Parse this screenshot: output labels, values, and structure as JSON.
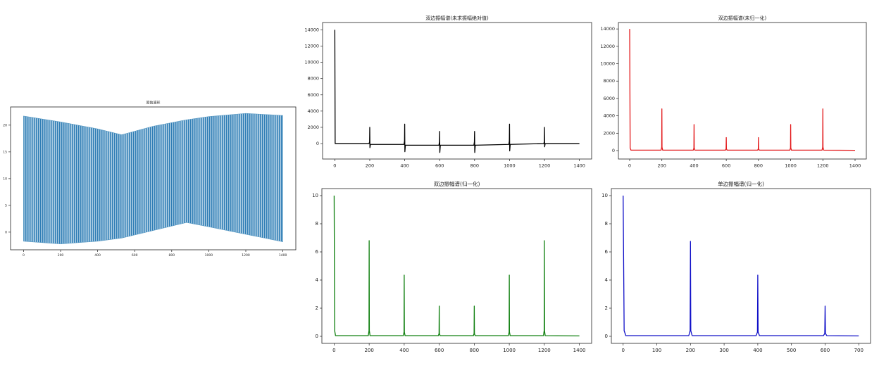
{
  "chart_data": [
    {
      "type": "area",
      "title": "原始波形",
      "color": "#5b9bc4",
      "x": [
        0,
        200,
        400,
        530,
        700,
        880,
        1000,
        1200,
        1400
      ],
      "upper": [
        21.7,
        20.6,
        19.3,
        18.2,
        19.8,
        21.0,
        21.6,
        22.2,
        21.8
      ],
      "lower": [
        -1.7,
        -2.2,
        -1.7,
        -1.1,
        0.3,
        1.8,
        1.0,
        -0.4,
        -1.8
      ],
      "xlim": [
        -70,
        1470
      ],
      "ylim": [
        -3.3,
        23.4
      ],
      "xticks": [
        0,
        200,
        400,
        600,
        800,
        1000,
        1200,
        1400
      ],
      "yticks": [
        0,
        5,
        10,
        15,
        20
      ]
    },
    {
      "type": "line",
      "title": "双边振幅谱(未求振幅绝对值)",
      "title_color": "#000000",
      "color": "#000000",
      "x": [
        0,
        2,
        196,
        199,
        200,
        201,
        204,
        396,
        399,
        400,
        401,
        404,
        596,
        599,
        600,
        601,
        604,
        796,
        799,
        800,
        801,
        804,
        996,
        999,
        1000,
        1001,
        1004,
        1196,
        1199,
        1200,
        1201,
        1204,
        1400
      ],
      "values": [
        14000,
        0,
        0,
        200,
        2000,
        -500,
        -100,
        -100,
        300,
        2400,
        -1000,
        -200,
        -200,
        200,
        1500,
        -1100,
        -200,
        -200,
        200,
        1500,
        -1100,
        -200,
        -100,
        300,
        2400,
        -900,
        -100,
        0,
        200,
        2000,
        -400,
        0,
        0
      ],
      "xlim": [
        -70,
        1470
      ],
      "ylim": [
        -1900,
        14900
      ],
      "xticks": [
        0,
        200,
        400,
        600,
        800,
        1000,
        1200,
        1400
      ],
      "yticks": [
        0,
        2000,
        4000,
        6000,
        8000,
        10000,
        12000,
        14000
      ]
    },
    {
      "type": "line",
      "title": "双边振幅谱(未归一化)",
      "title_color": "#d62728",
      "color": "#e31a1c",
      "x": [
        0,
        3,
        8,
        195,
        199,
        200,
        201,
        205,
        395,
        399,
        400,
        401,
        405,
        595,
        599,
        600,
        601,
        605,
        795,
        799,
        800,
        801,
        805,
        995,
        999,
        1000,
        1001,
        1005,
        1195,
        1199,
        1200,
        1201,
        1205,
        1400
      ],
      "values": [
        14000,
        300,
        50,
        50,
        400,
        4800,
        400,
        50,
        50,
        300,
        3000,
        300,
        50,
        50,
        200,
        1500,
        200,
        50,
        50,
        200,
        1500,
        200,
        50,
        50,
        300,
        3000,
        300,
        50,
        50,
        400,
        4800,
        400,
        50,
        30
      ],
      "xlim": [
        -70,
        1470
      ],
      "ylim": [
        -970,
        14740
      ],
      "xticks": [
        0,
        200,
        400,
        600,
        800,
        1000,
        1200,
        1400
      ],
      "yticks": [
        0,
        2000,
        4000,
        6000,
        8000,
        10000,
        12000,
        14000
      ]
    },
    {
      "type": "line",
      "title": "双边振幅谱(归一化)",
      "title_color": "#2ca02c",
      "color": "#108010",
      "x": [
        0,
        3,
        8,
        195,
        199,
        200,
        201,
        205,
        395,
        399,
        400,
        401,
        405,
        595,
        599,
        600,
        601,
        605,
        795,
        799,
        800,
        801,
        805,
        995,
        999,
        1000,
        1001,
        1005,
        1195,
        1199,
        1200,
        1201,
        1205,
        1400
      ],
      "values": [
        10,
        0.4,
        0.05,
        0.05,
        0.4,
        6.8,
        0.4,
        0.05,
        0.05,
        0.3,
        4.35,
        0.3,
        0.05,
        0.05,
        0.2,
        2.15,
        0.2,
        0.05,
        0.05,
        0.2,
        2.15,
        0.2,
        0.05,
        0.05,
        0.3,
        4.35,
        0.3,
        0.05,
        0.05,
        0.4,
        6.8,
        0.4,
        0.05,
        0.03
      ],
      "xlim": [
        -70,
        1470
      ],
      "ylim": [
        -0.5,
        10.5
      ],
      "xticks": [
        0,
        200,
        400,
        600,
        800,
        1000,
        1200,
        1400
      ],
      "yticks": [
        0,
        2,
        4,
        6,
        8,
        10
      ]
    },
    {
      "type": "line",
      "title": "单边振幅谱(归一化)",
      "title_color": "#1f1fd0",
      "color": "#1010c8",
      "x": [
        0,
        3,
        8,
        195,
        199,
        200,
        201,
        205,
        395,
        399,
        400,
        401,
        405,
        595,
        599,
        600,
        601,
        605,
        700
      ],
      "values": [
        10,
        0.4,
        0.05,
        0.05,
        0.4,
        6.75,
        0.4,
        0.05,
        0.05,
        0.3,
        4.35,
        0.3,
        0.05,
        0.05,
        0.2,
        2.15,
        0.2,
        0.05,
        0.03
      ],
      "xlim": [
        -35,
        735
      ],
      "ylim": [
        -0.5,
        10.5
      ],
      "xticks": [
        0,
        100,
        200,
        300,
        400,
        500,
        600,
        700
      ],
      "yticks": [
        0,
        2,
        4,
        6,
        8,
        10
      ]
    }
  ]
}
